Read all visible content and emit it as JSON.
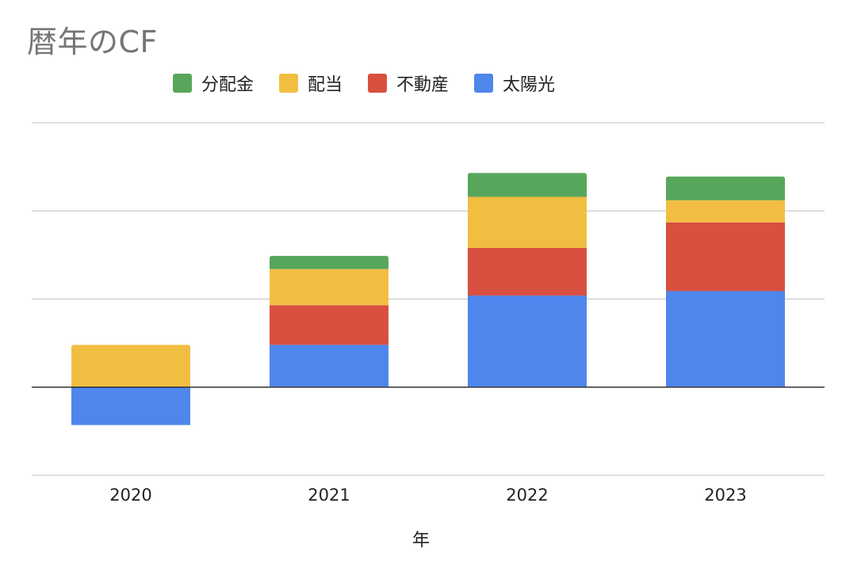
{
  "chart_data": {
    "type": "bar",
    "stacked": true,
    "title": "暦年のCF",
    "xlabel": "年",
    "ylabel": "",
    "categories": [
      "2020",
      "2021",
      "2022",
      "2023"
    ],
    "ylim": [
      -1,
      3
    ],
    "y_tick_labels_shown": false,
    "grid": true,
    "legend_position": "top",
    "series": [
      {
        "name": "太陽光",
        "color": "#4f86ec",
        "values": [
          -0.43,
          0.48,
          1.04,
          1.09
        ]
      },
      {
        "name": "不動産",
        "color": "#d95040",
        "values": [
          0,
          0.45,
          0.54,
          0.78
        ]
      },
      {
        "name": "配当",
        "color": "#f2be42",
        "values": [
          0.48,
          0.41,
          0.58,
          0.25
        ]
      },
      {
        "name": "分配金",
        "color": "#58a65c",
        "values": [
          0,
          0.15,
          0.27,
          0.27
        ]
      }
    ],
    "legend_order": [
      "分配金",
      "配当",
      "不動産",
      "太陽光"
    ]
  }
}
